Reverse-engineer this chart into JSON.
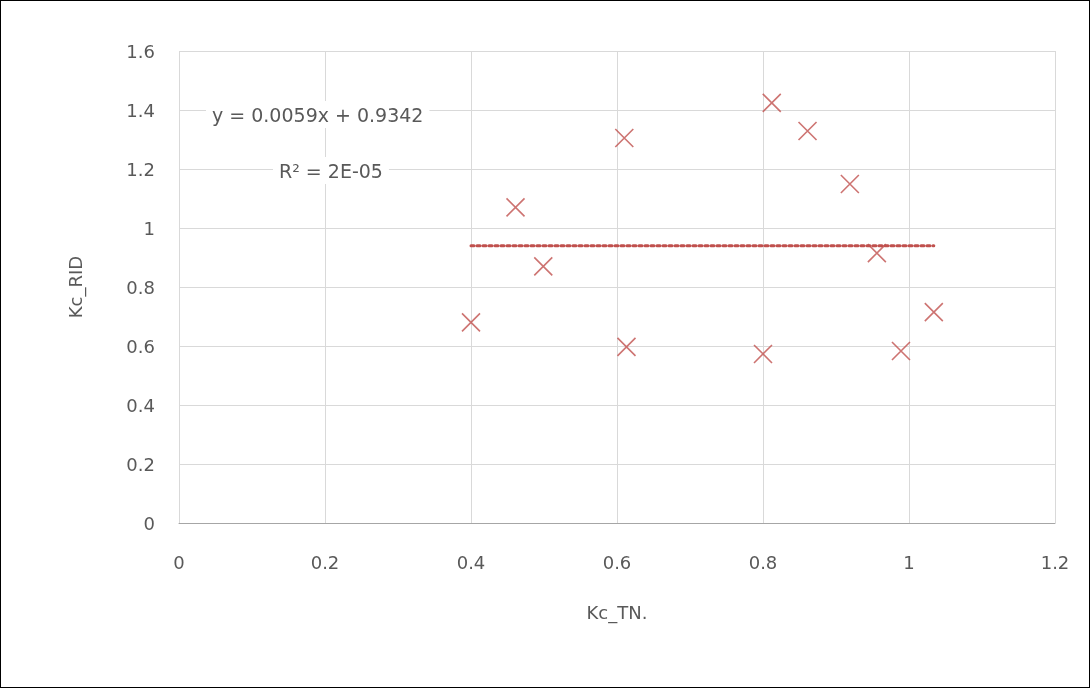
{
  "chart_data": {
    "type": "scatter",
    "xlabel": "Kc_TN.",
    "ylabel": "Kc_RID",
    "xlim": [
      0,
      1.2
    ],
    "xticks": [
      0,
      0.2,
      0.4,
      0.6,
      0.8,
      1,
      1.2
    ],
    "ylim": [
      0,
      1.6
    ],
    "yticks": [
      0,
      0.2,
      0.4,
      0.6,
      0.8,
      1,
      1.2,
      1.4,
      1.6
    ],
    "grid": true,
    "marker": "cross",
    "annotations": [
      "y = 0.0059x + 0.9342",
      "R² = 2E-05"
    ],
    "series": [
      {
        "color": "#c0504d",
        "x": [
          0.4,
          0.461,
          0.499,
          0.61,
          0.613,
          0.8,
          0.812,
          0.861,
          0.919,
          0.956,
          0.989,
          1.034
        ],
        "values": [
          0.68,
          1.07,
          0.87,
          1.305,
          0.597,
          0.573,
          1.424,
          1.329,
          1.149,
          0.915,
          0.583,
          0.715
        ]
      },
      {
        "type": "line",
        "color": "#c0504d",
        "line_style": "dotted",
        "marker": "none",
        "x": [
          0.4,
          1.034
        ],
        "values": [
          0.94,
          0.94
        ]
      }
    ]
  }
}
